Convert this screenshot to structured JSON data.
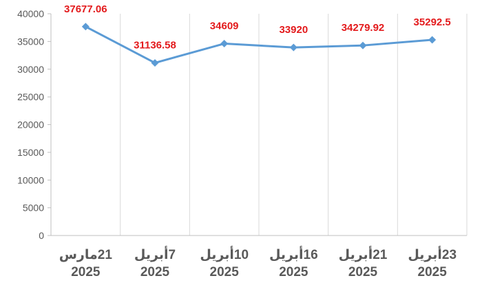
{
  "chart_data": {
    "type": "line",
    "title": "",
    "xlabel": "",
    "ylabel": "",
    "categories": [
      {
        "line1": "21مارس",
        "line2": "2025"
      },
      {
        "line1": "7أبريل",
        "line2": "2025"
      },
      {
        "line1": "10أبريل",
        "line2": "2025"
      },
      {
        "line1": "16أبريل",
        "line2": "2025"
      },
      {
        "line1": "21أبريل",
        "line2": "2025"
      },
      {
        "line1": "23أبريل",
        "line2": "2025"
      }
    ],
    "series": [
      {
        "values": [
          37677.06,
          31136.58,
          34609,
          33920,
          34279.92,
          35292.5
        ],
        "labels": [
          "37677.06",
          "31136.58",
          "34609",
          "33920",
          "34279.92",
          "35292.5"
        ],
        "color": "#5b9bd5",
        "marker": "diamond",
        "label_color": "#e31a1c"
      }
    ],
    "y_ticks": [
      "0",
      "5000",
      "10000",
      "15000",
      "20000",
      "25000",
      "30000",
      "35000",
      "40000"
    ],
    "ylim": [
      0,
      40000
    ],
    "grid": "vertical",
    "legend": "none"
  }
}
